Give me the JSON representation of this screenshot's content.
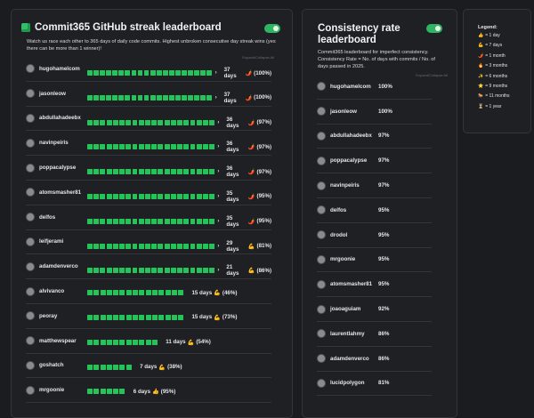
{
  "streak": {
    "icon": "green-cube-icon",
    "title": "Commit365 GitHub streak leaderboard",
    "toggle_on": true,
    "description": "Watch us race each other to 365 days of daily code commits. Highest unbroken consecutive day streak wins (yes there can be more than 1 winner)!",
    "expand_label": "Expand/Collapse All",
    "rows": [
      {
        "name": "hugohamelcom",
        "days": 37,
        "label": "37 days",
        "emoji": "🌶️",
        "pct": "(100%)"
      },
      {
        "name": "jasonleow",
        "days": 37,
        "label": "37 days",
        "emoji": "🌶️",
        "pct": "(100%)"
      },
      {
        "name": "abdullahadeebx",
        "days": 36,
        "label": "36 days",
        "emoji": "🌶️",
        "pct": "(97%)"
      },
      {
        "name": "navinpeiris",
        "days": 36,
        "label": "36 days",
        "emoji": "🌶️",
        "pct": "(97%)"
      },
      {
        "name": "poppacalypse",
        "days": 36,
        "label": "36 days",
        "emoji": "🌶️",
        "pct": "(97%)"
      },
      {
        "name": "atomsmasher81",
        "days": 35,
        "label": "35 days",
        "emoji": "🌶️",
        "pct": "(95%)"
      },
      {
        "name": "delfos",
        "days": 35,
        "label": "35 days",
        "emoji": "🌶️",
        "pct": "(95%)"
      },
      {
        "name": "leifjerami",
        "days": 29,
        "label": "29 days",
        "emoji": "💪",
        "pct": "(81%)"
      },
      {
        "name": "adamdenverco",
        "days": 21,
        "label": "21 days",
        "emoji": "💪",
        "pct": "(86%)"
      },
      {
        "name": "alvivanco",
        "days": 15,
        "label": "15 days",
        "emoji": "💪",
        "pct": "(46%)"
      },
      {
        "name": "peoray",
        "days": 15,
        "label": "15 days",
        "emoji": "💪",
        "pct": "(73%)"
      },
      {
        "name": "matthewspear",
        "days": 11,
        "label": "11 days",
        "emoji": "💪",
        "pct": "(54%)"
      },
      {
        "name": "goshatch",
        "days": 7,
        "label": "7 days",
        "emoji": "💪",
        "pct": "(38%)"
      },
      {
        "name": "mrgoonie",
        "days": 6,
        "label": "6 days",
        "emoji": "👍",
        "pct": "(95%)"
      }
    ]
  },
  "consistency": {
    "title": "Consistency rate leaderboard",
    "toggle_on": true,
    "description": "Commit365 leaderboard for imperfect consistency. Consistency Rate = No. of days with commits / No. of days passed in 2025.",
    "expand_label": "Expand/Collapse All",
    "rows": [
      {
        "name": "hugohamelcom",
        "pct": "100%"
      },
      {
        "name": "jasonleow",
        "pct": "100%"
      },
      {
        "name": "abdullahadeebx",
        "pct": "97%"
      },
      {
        "name": "poppacalypse",
        "pct": "97%"
      },
      {
        "name": "navinpeiris",
        "pct": "97%"
      },
      {
        "name": "delfos",
        "pct": "95%"
      },
      {
        "name": "drodol",
        "pct": "95%"
      },
      {
        "name": "mrgoonie",
        "pct": "95%"
      },
      {
        "name": "atomsmasher81",
        "pct": "95%"
      },
      {
        "name": "joaoaguiam",
        "pct": "92%"
      },
      {
        "name": "laurentlahmy",
        "pct": "86%"
      },
      {
        "name": "adamdenverco",
        "pct": "86%"
      },
      {
        "name": "lucidpolygon",
        "pct": "81%"
      }
    ]
  },
  "legend": {
    "title": "Legend:",
    "items": [
      {
        "emoji": "👍",
        "label": "= 1 day"
      },
      {
        "emoji": "💪",
        "label": "= 7 days"
      },
      {
        "emoji": "🌶️",
        "label": "= 1 month"
      },
      {
        "emoji": "🔥",
        "label": "= 3 months"
      },
      {
        "emoji": "✨",
        "label": "= 6 months"
      },
      {
        "emoji": "⭐",
        "label": "= 9 months"
      },
      {
        "emoji": "🐎",
        "label": "= 11 months"
      },
      {
        "emoji": "⏳",
        "label": "= 1 year"
      }
    ]
  },
  "colors": {
    "accent": "#25c45a",
    "toggle": "#2fb463",
    "background": "#1b1c20",
    "card": "#1f2024"
  }
}
